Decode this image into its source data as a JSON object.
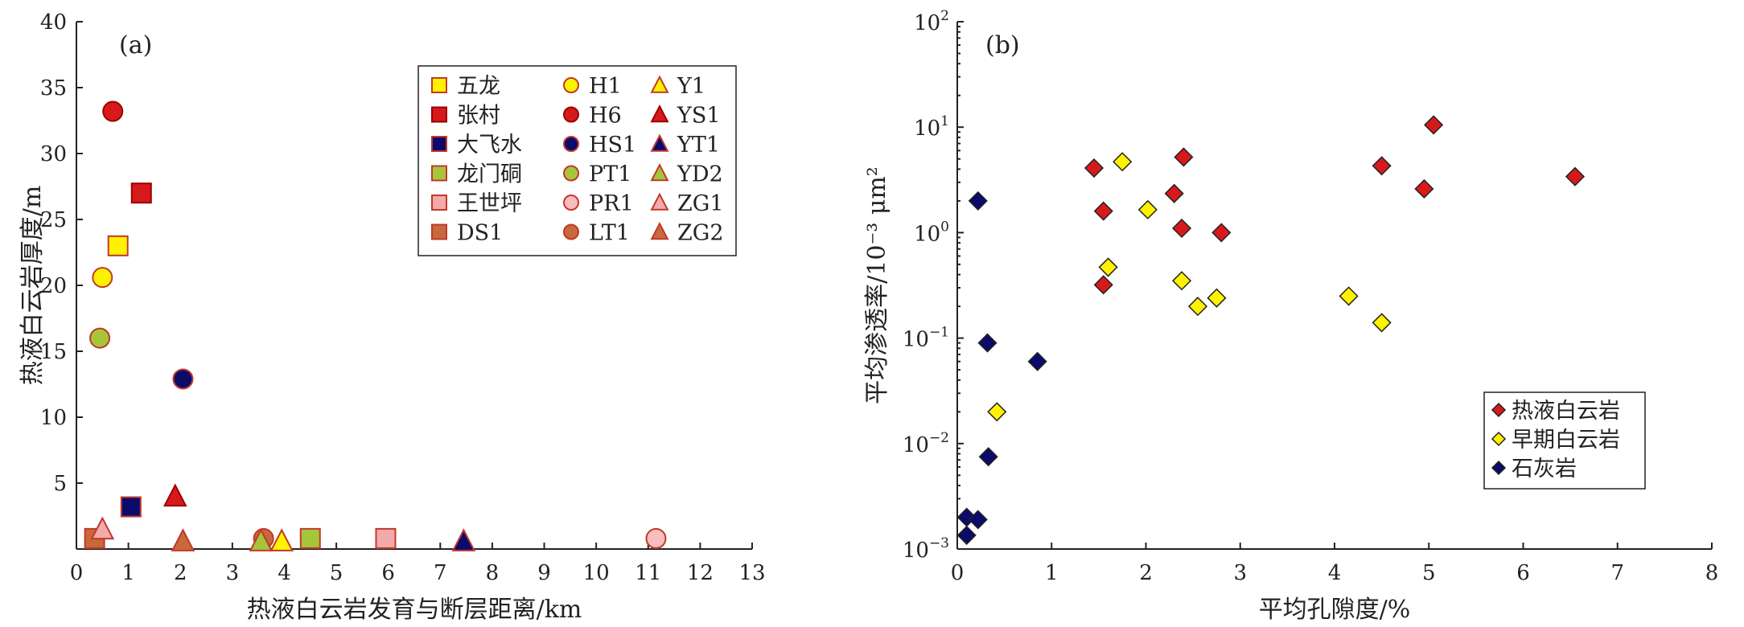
{
  "chart_data": [
    {
      "type": "scatter",
      "panel_label": "(a)",
      "xlabel": "热液白云岩发育与断层距离/km",
      "ylabel": "热液白云岩厚度/m",
      "xlim": [
        0,
        13
      ],
      "ylim": [
        0,
        40
      ],
      "xticks": [
        0,
        1,
        2,
        3,
        4,
        5,
        6,
        7,
        8,
        9,
        10,
        11,
        12,
        13
      ],
      "yticks": [
        5,
        10,
        15,
        20,
        25,
        30,
        35,
        40
      ],
      "legend_position": "top-right",
      "series": [
        {
          "name": "五龙",
          "marker": "square",
          "color": "#FFF200",
          "edge": "#C0392B",
          "points": [
            [
              0.8,
              23
            ]
          ]
        },
        {
          "name": "张村",
          "marker": "square",
          "color": "#D7191C",
          "edge": "#9B0000",
          "points": [
            [
              1.25,
              27
            ]
          ]
        },
        {
          "name": "大飞水",
          "marker": "square",
          "color": "#0B0B6B",
          "edge": "#C0392B",
          "points": [
            [
              1.05,
              3.2
            ]
          ]
        },
        {
          "name": "龙门硐",
          "marker": "square",
          "color": "#A6C63A",
          "edge": "#C0392B",
          "points": [
            [
              4.5,
              0.8
            ]
          ]
        },
        {
          "name": "王世坪",
          "marker": "square",
          "color": "#F4AAAA",
          "edge": "#C0392B",
          "points": [
            [
              5.95,
              0.8
            ]
          ]
        },
        {
          "name": "DS1",
          "marker": "square",
          "color": "#C8693C",
          "edge": "#C0392B",
          "points": [
            [
              0.35,
              0.8
            ]
          ]
        },
        {
          "name": "H1",
          "marker": "circle",
          "color": "#FFF200",
          "edge": "#C0392B",
          "points": [
            [
              0.5,
              20.6
            ]
          ]
        },
        {
          "name": "H6",
          "marker": "circle",
          "color": "#D7191C",
          "edge": "#9B0000",
          "points": [
            [
              0.7,
              33.2
            ]
          ]
        },
        {
          "name": "HS1",
          "marker": "circle",
          "color": "#0B0B6B",
          "edge": "#C0392B",
          "points": [
            [
              2.05,
              12.9
            ]
          ]
        },
        {
          "name": "PT1",
          "marker": "circle",
          "color": "#A6C63A",
          "edge": "#C0392B",
          "points": [
            [
              0.45,
              16
            ]
          ]
        },
        {
          "name": "PR1",
          "marker": "circle",
          "color": "#F9BDBD",
          "edge": "#C0392B",
          "points": [
            [
              11.15,
              0.8
            ]
          ]
        },
        {
          "name": "LT1",
          "marker": "circle",
          "color": "#C8693C",
          "edge": "#C0392B",
          "points": [
            [
              3.6,
              0.8
            ]
          ]
        },
        {
          "name": "Y1",
          "marker": "triangle",
          "color": "#FFF200",
          "edge": "#C0392B",
          "points": [
            [
              3.95,
              0.6
            ]
          ]
        },
        {
          "name": "YS1",
          "marker": "triangle",
          "color": "#D7191C",
          "edge": "#9B0000",
          "points": [
            [
              1.9,
              4
            ]
          ]
        },
        {
          "name": "YT1",
          "marker": "triangle",
          "color": "#0B0B6B",
          "edge": "#C0392B",
          "points": [
            [
              7.45,
              0.6
            ]
          ]
        },
        {
          "name": "YD2",
          "marker": "triangle",
          "color": "#A6C63A",
          "edge": "#C0392B",
          "points": [
            [
              3.55,
              0.6
            ]
          ]
        },
        {
          "name": "ZG1",
          "marker": "triangle",
          "color": "#F4AAAA",
          "edge": "#C0392B",
          "points": [
            [
              0.5,
              1.5
            ]
          ]
        },
        {
          "name": "ZG2",
          "marker": "triangle",
          "color": "#C8693C",
          "edge": "#C0392B",
          "points": [
            [
              2.05,
              0.6
            ]
          ]
        }
      ]
    },
    {
      "type": "scatter",
      "panel_label": "(b)",
      "xlabel": "平均孔隙度/%",
      "ylabel": "平均渗透率/10⁻³ μm²",
      "xscale": "linear",
      "yscale": "log",
      "xlim": [
        0,
        8
      ],
      "ylim": [
        0.001,
        100
      ],
      "xticks": [
        0,
        1,
        2,
        3,
        4,
        5,
        6,
        7,
        8
      ],
      "yticks": [
        {
          "value": 0.001,
          "base": "10",
          "exp": "−3"
        },
        {
          "value": 0.01,
          "base": "10",
          "exp": "−2"
        },
        {
          "value": 0.1,
          "base": "10",
          "exp": "−1"
        },
        {
          "value": 1,
          "base": "10",
          "exp": "0"
        },
        {
          "value": 10,
          "base": "10",
          "exp": "1"
        },
        {
          "value": 100,
          "base": "10",
          "exp": "2"
        }
      ],
      "legend_position": "bottom-right",
      "series": [
        {
          "name": "热液白云岩",
          "marker": "diamond",
          "color": "#D7191C",
          "edge": "#222222",
          "points": [
            [
              1.45,
              4.1
            ],
            [
              1.55,
              1.6
            ],
            [
              1.55,
              0.32
            ],
            [
              2.3,
              2.35
            ],
            [
              2.4,
              5.2
            ],
            [
              2.38,
              1.1
            ],
            [
              2.8,
              1.0
            ],
            [
              4.5,
              4.3
            ],
            [
              4.95,
              2.6
            ],
            [
              5.05,
              10.5
            ],
            [
              6.55,
              3.4
            ]
          ]
        },
        {
          "name": "早期白云岩",
          "marker": "diamond",
          "color": "#FFF200",
          "edge": "#222222",
          "points": [
            [
              1.75,
              4.7
            ],
            [
              1.6,
              0.47
            ],
            [
              2.02,
              1.65
            ],
            [
              2.38,
              0.35
            ],
            [
              2.55,
              0.2
            ],
            [
              2.75,
              0.24
            ],
            [
              4.15,
              0.25
            ],
            [
              4.5,
              0.14
            ],
            [
              0.42,
              0.02
            ]
          ]
        },
        {
          "name": "石灰岩",
          "marker": "diamond",
          "color": "#0B0B6B",
          "edge": "#222222",
          "points": [
            [
              0.22,
              2.0
            ],
            [
              0.32,
              0.09
            ],
            [
              0.85,
              0.06
            ],
            [
              0.33,
              0.0075
            ],
            [
              0.1,
              0.002
            ],
            [
              0.22,
              0.0019
            ],
            [
              0.1,
              0.00135
            ]
          ]
        }
      ]
    }
  ]
}
